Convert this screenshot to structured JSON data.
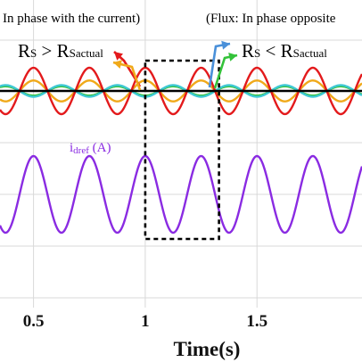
{
  "colors": {
    "red": "#e31a1c",
    "orange": "#f0a91a",
    "cyan": "#3ec8d4",
    "green": "#34c23a",
    "blue": "#4a90d9",
    "purple": "#8a2be2",
    "black": "#000000",
    "grid": "#d9d9d9"
  },
  "annotations": {
    "left_text": "In phase with the current)",
    "right_text": "(Flux: In phase opposite",
    "rs_left": "R",
    "rs_left_sub": "S",
    "rs_left_op": " > R",
    "rs_left_sub2": "Sactual",
    "rs_right": "R",
    "rs_right_sub": "S",
    "rs_right_op": " < R",
    "rs_right_sub2": "Sactual",
    "idref_label": "i",
    "idref_sub": "dref",
    "idref_unit": " (A)"
  },
  "chart_data": {
    "type": "line",
    "xlabel": "Time(s)",
    "xlim": [
      0.35,
      1.97
    ],
    "x_ticks": [
      0.5,
      1,
      1.5
    ],
    "x_tick_labels": [
      "0.5",
      "1",
      "1.5"
    ],
    "grid": true,
    "signal_period_s": 0.25,
    "upper_panel": {
      "series": [
        {
          "name": "Rs > Rsactual",
          "color": "red",
          "amplitude": 1.0,
          "phase": "in phase with current"
        },
        {
          "name": "Rs < Rsactual",
          "color": "cyan",
          "amplitude": 0.25,
          "phase": "opposite"
        },
        {
          "color": "orange",
          "amplitude": 0.45,
          "phase": "in phase with current"
        },
        {
          "color": "green",
          "amplitude": 0.2,
          "phase": "opposite"
        },
        {
          "color": "black",
          "amplitude": 0,
          "phase": "reference"
        }
      ]
    },
    "lower_panel": {
      "series": [
        {
          "name": "idref (A)",
          "color": "purple",
          "amplitude": 1.0,
          "peak_time_s": 0.75
        }
      ]
    },
    "highlight_window_s": [
      1.0,
      1.33
    ]
  }
}
